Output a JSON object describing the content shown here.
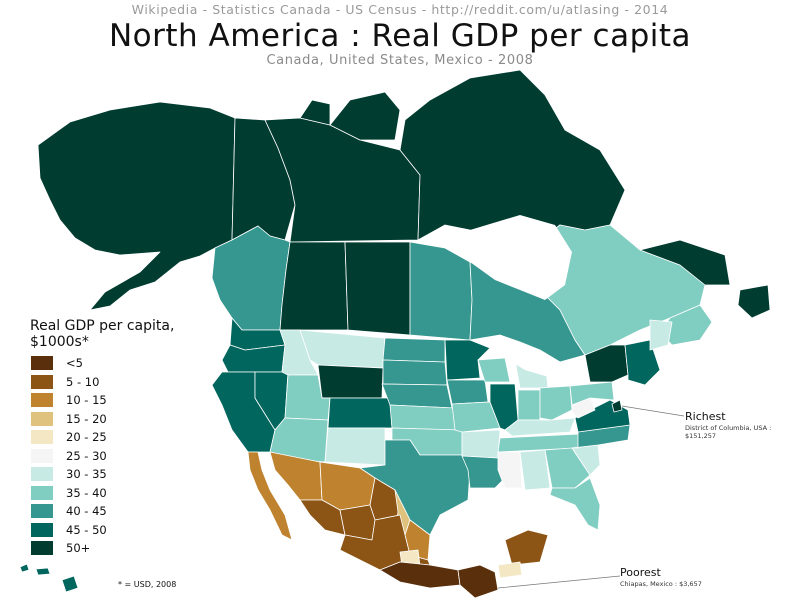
{
  "header": {
    "sources": "Wikipedia  -  Statistics Canada  -  US Census  -  http://reddit.com/u/atlasing  -  2014",
    "title": "North America : Real GDP per capita",
    "subtitle": "Canada, United States, Mexico - 2008"
  },
  "legend": {
    "title": "Real GDP per capita, $1000s*",
    "items": [
      {
        "label": "<5",
        "color": "#5a2f0c"
      },
      {
        "label": "5 - 10",
        "color": "#8c5415"
      },
      {
        "label": "10 - 15",
        "color": "#bf832f"
      },
      {
        "label": "15 - 20",
        "color": "#dfc27d"
      },
      {
        "label": "20 - 25",
        "color": "#f3e7c4"
      },
      {
        "label": "25 - 30",
        "color": "#f5f5f5"
      },
      {
        "label": "30 - 35",
        "color": "#c7eae5"
      },
      {
        "label": "35 - 40",
        "color": "#80cdc1"
      },
      {
        "label": "40 - 45",
        "color": "#35978f"
      },
      {
        "label": "45 - 50",
        "color": "#01665e"
      },
      {
        "label": "50+",
        "color": "#003c30"
      }
    ]
  },
  "footnote": "* = USD, 2008",
  "callouts": {
    "richest": {
      "title": "Richest",
      "detail": "District of Columbia, USA : $151,257"
    },
    "poorest": {
      "title": "Poorest",
      "detail": "Chiapas, Mexico : $3,657"
    }
  },
  "map": {
    "stroke": "#ffffff",
    "regions": [
      {
        "name": "Alaska",
        "color": "#003c30"
      },
      {
        "name": "Yukon",
        "color": "#003c30"
      },
      {
        "name": "Northwest Territories",
        "color": "#003c30"
      },
      {
        "name": "Nunavut",
        "color": "#003c30"
      },
      {
        "name": "British Columbia",
        "color": "#35978f"
      },
      {
        "name": "Alberta",
        "color": "#003c30"
      },
      {
        "name": "Saskatchewan",
        "color": "#003c30"
      },
      {
        "name": "Manitoba",
        "color": "#35978f"
      },
      {
        "name": "Ontario",
        "color": "#35978f"
      },
      {
        "name": "Quebec",
        "color": "#80cdc1"
      },
      {
        "name": "Newfoundland and Labrador",
        "color": "#003c30"
      },
      {
        "name": "Maritimes",
        "color": "#80cdc1"
      },
      {
        "name": "Washington",
        "color": "#01665e"
      },
      {
        "name": "Oregon",
        "color": "#01665e"
      },
      {
        "name": "California",
        "color": "#01665e"
      },
      {
        "name": "Nevada",
        "color": "#01665e"
      },
      {
        "name": "Idaho",
        "color": "#c7eae5"
      },
      {
        "name": "Montana",
        "color": "#c7eae5"
      },
      {
        "name": "Wyoming",
        "color": "#003c30"
      },
      {
        "name": "Utah",
        "color": "#80cdc1"
      },
      {
        "name": "Arizona",
        "color": "#80cdc1"
      },
      {
        "name": "Colorado",
        "color": "#01665e"
      },
      {
        "name": "New Mexico",
        "color": "#c7eae5"
      },
      {
        "name": "North Dakota",
        "color": "#35978f"
      },
      {
        "name": "South Dakota",
        "color": "#35978f"
      },
      {
        "name": "Nebraska",
        "color": "#35978f"
      },
      {
        "name": "Kansas",
        "color": "#80cdc1"
      },
      {
        "name": "Oklahoma",
        "color": "#80cdc1"
      },
      {
        "name": "Texas",
        "color": "#35978f"
      },
      {
        "name": "Minnesota",
        "color": "#01665e"
      },
      {
        "name": "Iowa",
        "color": "#35978f"
      },
      {
        "name": "Missouri",
        "color": "#80cdc1"
      },
      {
        "name": "Arkansas",
        "color": "#c7eae5"
      },
      {
        "name": "Louisiana",
        "color": "#35978f"
      },
      {
        "name": "Wisconsin",
        "color": "#80cdc1"
      },
      {
        "name": "Illinois",
        "color": "#01665e"
      },
      {
        "name": "Michigan",
        "color": "#c7eae5"
      },
      {
        "name": "Indiana",
        "color": "#80cdc1"
      },
      {
        "name": "Ohio",
        "color": "#80cdc1"
      },
      {
        "name": "Kentucky",
        "color": "#c7eae5"
      },
      {
        "name": "Tennessee",
        "color": "#80cdc1"
      },
      {
        "name": "Mississippi",
        "color": "#f5f5f5"
      },
      {
        "name": "Alabama",
        "color": "#c7eae5"
      },
      {
        "name": "Georgia",
        "color": "#80cdc1"
      },
      {
        "name": "Florida",
        "color": "#80cdc1"
      },
      {
        "name": "South Carolina",
        "color": "#c7eae5"
      },
      {
        "name": "North Carolina",
        "color": "#35978f"
      },
      {
        "name": "Virginia",
        "color": "#01665e"
      },
      {
        "name": "West Virginia",
        "color": "#f5f5f5"
      },
      {
        "name": "Pennsylvania",
        "color": "#80cdc1"
      },
      {
        "name": "New York",
        "color": "#003c30"
      },
      {
        "name": "New England",
        "color": "#01665e"
      },
      {
        "name": "Maine",
        "color": "#c7eae5"
      },
      {
        "name": "District of Columbia",
        "color": "#003c30"
      },
      {
        "name": "Baja California",
        "color": "#bf832f"
      },
      {
        "name": "Sonora",
        "color": "#bf832f"
      },
      {
        "name": "Chihuahua",
        "color": "#bf832f"
      },
      {
        "name": "Coahuila",
        "color": "#8c5415"
      },
      {
        "name": "Nuevo Leon",
        "color": "#dfc27d"
      },
      {
        "name": "Tamaulipas",
        "color": "#bf832f"
      },
      {
        "name": "Sinaloa",
        "color": "#8c5415"
      },
      {
        "name": "Durango",
        "color": "#8c5415"
      },
      {
        "name": "Central Mexico",
        "color": "#8c5415"
      },
      {
        "name": "Mexico City",
        "color": "#f3e7c4"
      },
      {
        "name": "Oaxaca",
        "color": "#5a2f0c"
      },
      {
        "name": "Chiapas",
        "color": "#5a2f0c"
      },
      {
        "name": "Yucatan Peninsula",
        "color": "#8c5415"
      },
      {
        "name": "Quintana Roo",
        "color": "#f3e7c4"
      },
      {
        "name": "Hawaii",
        "color": "#01665e"
      }
    ]
  }
}
